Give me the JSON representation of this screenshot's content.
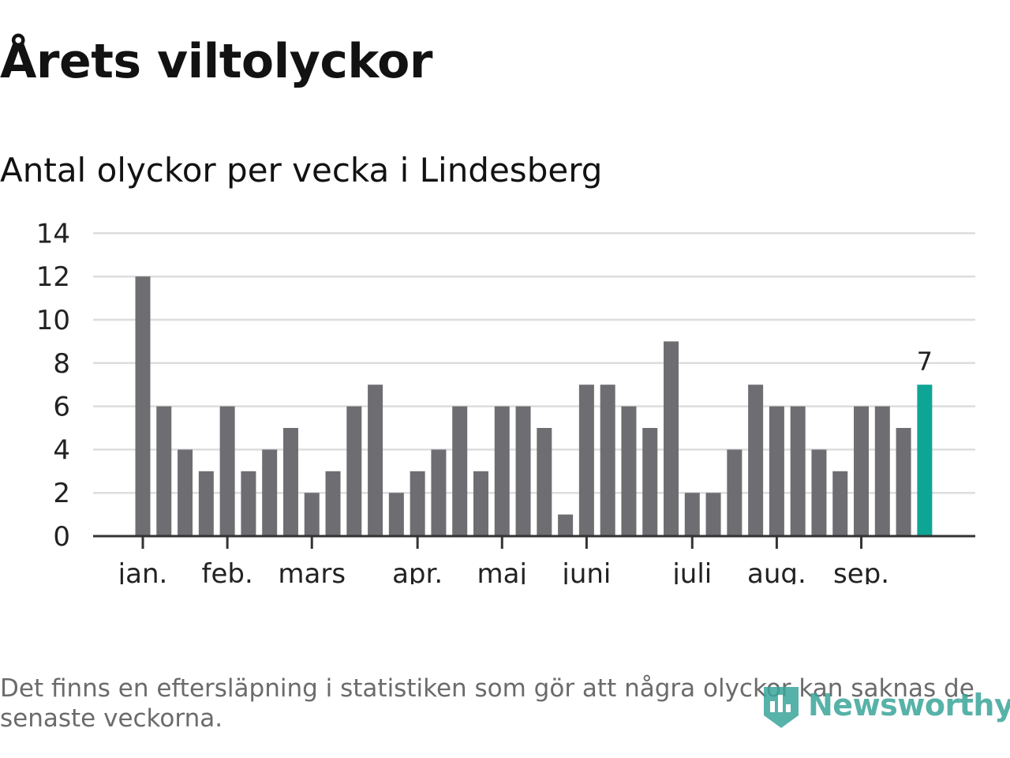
{
  "header": {
    "title": "Årets viltolyckor",
    "subtitle": "Antal olyckor per vecka i Lindesberg"
  },
  "footer": {
    "note": "Det finns en eftersläpning i statistiken som gör att några olyckor kan saknas de senaste veckorna.",
    "brand": "Newsworthy"
  },
  "colors": {
    "bar": "#6e6d72",
    "highlight": "#0fa596",
    "grid": "#dddddd",
    "axis": "#333333",
    "text": "#222222",
    "brand": "#3aa59a"
  },
  "chart_data": {
    "type": "bar",
    "title": "Antal olyckor per vecka i Lindesberg",
    "xlabel": "",
    "ylabel": "",
    "ylim": [
      0,
      14
    ],
    "yticks": [
      "0",
      "2",
      "4",
      "6",
      "8",
      "10",
      "12",
      "14"
    ],
    "grid": true,
    "weeks": [
      1,
      2,
      3,
      4,
      5,
      6,
      7,
      8,
      9,
      10,
      11,
      12,
      13,
      14,
      15,
      16,
      17,
      18,
      19,
      20,
      21,
      22,
      23,
      24,
      25,
      26,
      27,
      28,
      29,
      30,
      31,
      32,
      33,
      34,
      35,
      36,
      37,
      38
    ],
    "values": [
      12,
      6,
      4,
      3,
      6,
      3,
      4,
      5,
      2,
      3,
      6,
      7,
      2,
      3,
      4,
      6,
      3,
      6,
      6,
      5,
      1,
      7,
      7,
      6,
      5,
      9,
      2,
      2,
      4,
      7,
      6,
      6,
      4,
      3,
      6,
      6,
      5,
      7
    ],
    "month_ticks": [
      {
        "label": "jan.",
        "week": 1
      },
      {
        "label": "feb.",
        "week": 5
      },
      {
        "label": "mars",
        "week": 9
      },
      {
        "label": "apr.",
        "week": 14
      },
      {
        "label": "maj",
        "week": 18
      },
      {
        "label": "juni",
        "week": 22
      },
      {
        "label": "juli",
        "week": 27
      },
      {
        "label": "aug.",
        "week": 31
      },
      {
        "label": "sep.",
        "week": 35
      }
    ],
    "highlight_index": 37,
    "highlight_label": "7"
  }
}
